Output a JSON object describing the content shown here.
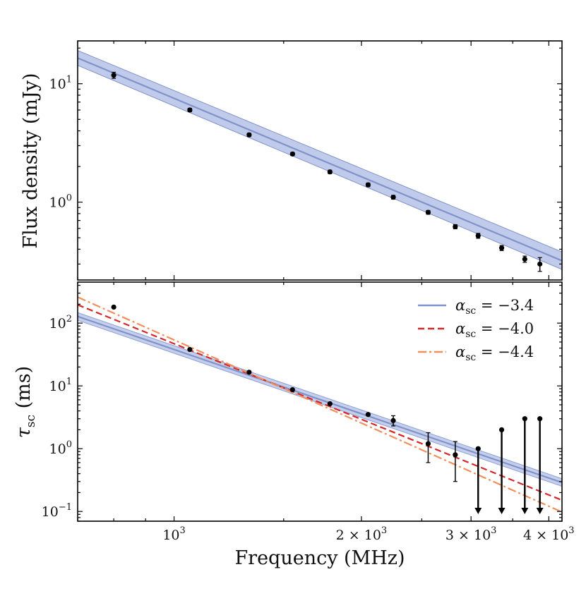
{
  "chart_data": [
    {
      "panel": "top",
      "type": "scatter",
      "scale": {
        "x": "log",
        "y": "log"
      },
      "ylabel": "Flux density (mJy)",
      "xlabel": "",
      "xlim": [
        700,
        4200
      ],
      "ylim": [
        0.22,
        23
      ],
      "y_ticks": [
        {
          "value": 1,
          "label": "10^0"
        },
        {
          "value": 10,
          "label": "10^1"
        }
      ],
      "fit": {
        "name": "power-law fit",
        "color": "#7f93c9",
        "band_color": "#8c9fd8",
        "x": [
          700,
          4200
        ],
        "y": [
          16.5,
          0.32
        ],
        "band_low": [
          14.3,
          0.27
        ],
        "band_high": [
          19.1,
          0.38
        ]
      },
      "points": {
        "x": [
          800,
          1060,
          1320,
          1550,
          1780,
          2050,
          2250,
          2560,
          2830,
          3080,
          3360,
          3660,
          3870
        ],
        "y": [
          11.8,
          6.0,
          3.7,
          2.55,
          1.8,
          1.4,
          1.1,
          0.82,
          0.62,
          0.52,
          0.41,
          0.33,
          0.3
        ],
        "y_err": [
          0.7,
          0.2,
          0.12,
          0.08,
          0.06,
          0.05,
          0.04,
          0.03,
          0.025,
          0.025,
          0.02,
          0.02,
          0.04
        ]
      }
    },
    {
      "panel": "bottom",
      "type": "scatter",
      "scale": {
        "x": "log",
        "y": "log"
      },
      "ylabel": "τ",
      "ylabel_sub": "sc",
      "ylabel_unit": " (ms)",
      "xlabel": "Frequency (MHz)",
      "xlim": [
        700,
        4200
      ],
      "ylim": [
        0.07,
        450
      ],
      "x_ticks": [
        {
          "value": 1000,
          "label": "10^3"
        },
        {
          "value": 2000,
          "label": "2 × 10^3"
        },
        {
          "value": 3000,
          "label": "3 × 10^3"
        },
        {
          "value": 4000,
          "label": "4 × 10^3"
        }
      ],
      "y_ticks": [
        {
          "value": 0.1,
          "label": "10^−1"
        },
        {
          "value": 1,
          "label": "10^0"
        },
        {
          "value": 10,
          "label": "10^1"
        },
        {
          "value": 100,
          "label": "10^2"
        }
      ],
      "series": [
        {
          "name": "α_sc = −3.4",
          "alpha_name": "α",
          "sub": "sc",
          "value_text": " = −3.4",
          "color": "#7f93c9",
          "style": "solid",
          "alpha": -3.4,
          "ref_x": 1000,
          "ref_y": 38
        },
        {
          "name": "α_sc = −4.0",
          "alpha_name": "α",
          "sub": "sc",
          "value_text": " = −4.0",
          "color": "#d62728",
          "style": "dashed",
          "alpha": -4.0,
          "ref_x": 1000,
          "ref_y": 47
        },
        {
          "name": "α_sc = −4.4",
          "alpha_name": "α",
          "sub": "sc",
          "value_text": " = −4.4",
          "color": "#f28e5b",
          "style": "dashdot",
          "alpha": -4.4,
          "ref_x": 1000,
          "ref_y": 54
        }
      ],
      "band": {
        "alpha": -3.4,
        "ref_x": 1000,
        "ref_y": 38,
        "low_factor": 0.87,
        "high_factor": 1.15,
        "color": "#8c9fd8"
      },
      "points": {
        "x": [
          800,
          1060,
          1320,
          1550,
          1780,
          2050,
          2250,
          2560,
          2830
        ],
        "y": [
          180,
          38,
          16.5,
          8.7,
          5.2,
          3.5,
          2.8,
          1.2,
          0.8
        ],
        "y_low": [
          180,
          38,
          16.5,
          8.7,
          5.2,
          3.35,
          2.3,
          0.6,
          0.3
        ],
        "y_high": [
          180,
          38,
          16.5,
          8.7,
          5.2,
          3.65,
          3.35,
          1.8,
          1.3
        ]
      },
      "upper_limits": {
        "x": [
          3080,
          3360,
          3660,
          3870
        ],
        "y": [
          1.0,
          2.0,
          3.0,
          3.0
        ]
      }
    }
  ]
}
